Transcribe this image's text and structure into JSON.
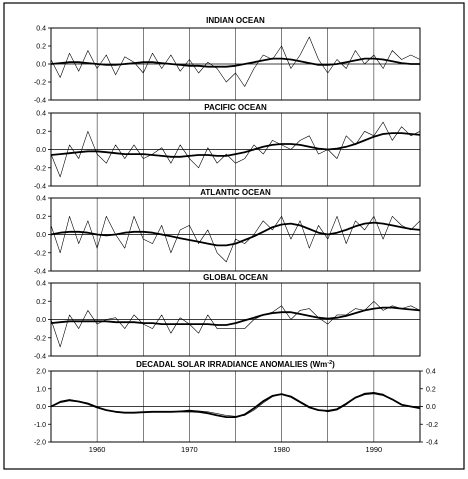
{
  "chart_data": [
    {
      "type": "line",
      "title": "INDIAN OCEAN",
      "xlim": [
        1955,
        1995
      ],
      "ylim": [
        -0.4,
        0.4
      ],
      "yticks": [
        0.4,
        0.2,
        0.0,
        -0.2,
        -0.4
      ],
      "ytick_labels": [
        "0.4",
        "0.2",
        "0.0",
        "-0.2",
        "-0.4"
      ],
      "grid": true,
      "series": [
        {
          "style": "thin",
          "x": [
            1955,
            1956,
            1957,
            1958,
            1959,
            1960,
            1961,
            1962,
            1963,
            1964,
            1965,
            1966,
            1967,
            1968,
            1969,
            1970,
            1971,
            1972,
            1973,
            1974,
            1975,
            1976,
            1977,
            1978,
            1979,
            1980,
            1981,
            1982,
            1983,
            1984,
            1985,
            1986,
            1987,
            1988,
            1989,
            1990,
            1991,
            1992,
            1993,
            1994,
            1995
          ],
          "values": [
            0.05,
            -0.15,
            0.12,
            -0.08,
            0.15,
            -0.05,
            0.1,
            -0.12,
            0.08,
            0.02,
            -0.1,
            0.12,
            -0.05,
            0.1,
            -0.08,
            0.05,
            -0.1,
            0.02,
            -0.05,
            -0.2,
            -0.1,
            -0.25,
            -0.05,
            0.1,
            0.05,
            0.2,
            -0.05,
            0.1,
            0.3,
            0.05,
            -0.1,
            0.05,
            -0.05,
            0.15,
            0.0,
            0.1,
            -0.05,
            0.15,
            0.05,
            0.1,
            0.05
          ]
        },
        {
          "style": "smooth",
          "x": [
            1955,
            1956,
            1957,
            1958,
            1959,
            1960,
            1961,
            1962,
            1963,
            1964,
            1965,
            1966,
            1967,
            1968,
            1969,
            1970,
            1971,
            1972,
            1973,
            1974,
            1975,
            1976,
            1977,
            1978,
            1979,
            1980,
            1981,
            1982,
            1983,
            1984,
            1985,
            1986,
            1987,
            1988,
            1989,
            1990,
            1991,
            1992,
            1993,
            1994,
            1995
          ],
          "values": [
            0.0,
            0.01,
            0.02,
            0.02,
            0.01,
            0.0,
            -0.01,
            -0.01,
            0.0,
            0.01,
            0.02,
            0.02,
            0.01,
            0.0,
            -0.01,
            -0.02,
            -0.02,
            -0.03,
            -0.03,
            -0.03,
            -0.02,
            0.0,
            0.02,
            0.04,
            0.06,
            0.06,
            0.05,
            0.03,
            0.01,
            -0.01,
            -0.01,
            0.0,
            0.02,
            0.04,
            0.06,
            0.06,
            0.05,
            0.03,
            0.01,
            0.0,
            0.0
          ]
        }
      ]
    },
    {
      "type": "line",
      "title": "PACIFIC OCEAN",
      "xlim": [
        1955,
        1995
      ],
      "ylim": [
        -0.4,
        0.4
      ],
      "yticks": [
        0.4,
        0.2,
        0.0,
        -0.2,
        -0.4
      ],
      "ytick_labels": [
        "0.4",
        "0.2",
        "0.0",
        "-0.2",
        "-0.4"
      ],
      "grid": true,
      "series": [
        {
          "style": "thin",
          "x": [
            1955,
            1956,
            1957,
            1958,
            1959,
            1960,
            1961,
            1962,
            1963,
            1964,
            1965,
            1966,
            1967,
            1968,
            1969,
            1970,
            1971,
            1972,
            1973,
            1974,
            1975,
            1976,
            1977,
            1978,
            1979,
            1980,
            1981,
            1982,
            1983,
            1984,
            1985,
            1986,
            1987,
            1988,
            1989,
            1990,
            1991,
            1992,
            1993,
            1994,
            1995
          ],
          "values": [
            -0.05,
            -0.3,
            0.05,
            -0.1,
            0.2,
            -0.05,
            -0.15,
            0.05,
            -0.1,
            0.05,
            -0.1,
            -0.05,
            0.02,
            -0.15,
            0.05,
            -0.1,
            -0.2,
            0.02,
            -0.15,
            -0.05,
            -0.15,
            -0.1,
            0.05,
            -0.05,
            0.1,
            0.05,
            0.0,
            0.1,
            0.15,
            -0.05,
            0.0,
            -0.1,
            0.15,
            0.05,
            0.2,
            0.15,
            0.3,
            0.1,
            0.25,
            0.15,
            0.2
          ]
        },
        {
          "style": "smooth",
          "x": [
            1955,
            1956,
            1957,
            1958,
            1959,
            1960,
            1961,
            1962,
            1963,
            1964,
            1965,
            1966,
            1967,
            1968,
            1969,
            1970,
            1971,
            1972,
            1973,
            1974,
            1975,
            1976,
            1977,
            1978,
            1979,
            1980,
            1981,
            1982,
            1983,
            1984,
            1985,
            1986,
            1987,
            1988,
            1989,
            1990,
            1991,
            1992,
            1993,
            1994,
            1995
          ],
          "values": [
            -0.06,
            -0.05,
            -0.04,
            -0.03,
            -0.02,
            -0.02,
            -0.03,
            -0.04,
            -0.05,
            -0.05,
            -0.05,
            -0.06,
            -0.07,
            -0.08,
            -0.08,
            -0.07,
            -0.06,
            -0.06,
            -0.07,
            -0.07,
            -0.05,
            -0.03,
            0.0,
            0.03,
            0.05,
            0.06,
            0.06,
            0.05,
            0.03,
            0.01,
            0.0,
            0.01,
            0.03,
            0.06,
            0.1,
            0.14,
            0.17,
            0.18,
            0.18,
            0.17,
            0.16
          ]
        }
      ]
    },
    {
      "type": "line",
      "title": "ATLANTIC OCEAN",
      "xlim": [
        1955,
        1995
      ],
      "ylim": [
        -0.4,
        0.4
      ],
      "yticks": [
        0.4,
        0.2,
        0.0,
        -0.2,
        -0.4
      ],
      "ytick_labels": [
        "0.4",
        "0.2",
        "0.0",
        "-0.2",
        "-0.4"
      ],
      "grid": true,
      "series": [
        {
          "style": "thin",
          "x": [
            1955,
            1956,
            1957,
            1958,
            1959,
            1960,
            1961,
            1962,
            1963,
            1964,
            1965,
            1966,
            1967,
            1968,
            1969,
            1970,
            1971,
            1972,
            1973,
            1974,
            1975,
            1976,
            1977,
            1978,
            1979,
            1980,
            1981,
            1982,
            1983,
            1984,
            1985,
            1986,
            1987,
            1988,
            1989,
            1990,
            1991,
            1992,
            1993,
            1994,
            1995
          ],
          "values": [
            0.1,
            -0.2,
            0.2,
            -0.1,
            0.15,
            -0.15,
            0.2,
            0.0,
            -0.15,
            0.2,
            -0.05,
            -0.1,
            0.1,
            -0.2,
            0.05,
            0.1,
            -0.1,
            0.05,
            -0.2,
            -0.3,
            -0.05,
            -0.1,
            0.0,
            0.15,
            0.05,
            0.2,
            -0.05,
            0.15,
            -0.15,
            0.1,
            -0.05,
            0.2,
            -0.1,
            0.15,
            0.05,
            0.2,
            -0.05,
            0.2,
            0.1,
            0.05,
            0.15
          ]
        },
        {
          "style": "smooth",
          "x": [
            1955,
            1956,
            1957,
            1958,
            1959,
            1960,
            1961,
            1962,
            1963,
            1964,
            1965,
            1966,
            1967,
            1968,
            1969,
            1970,
            1971,
            1972,
            1973,
            1974,
            1975,
            1976,
            1977,
            1978,
            1979,
            1980,
            1981,
            1982,
            1983,
            1984,
            1985,
            1986,
            1987,
            1988,
            1989,
            1990,
            1991,
            1992,
            1993,
            1994,
            1995
          ],
          "values": [
            0.0,
            0.02,
            0.03,
            0.03,
            0.02,
            0.0,
            -0.01,
            0.0,
            0.02,
            0.03,
            0.03,
            0.02,
            0.0,
            -0.02,
            -0.04,
            -0.06,
            -0.08,
            -0.1,
            -0.12,
            -0.12,
            -0.1,
            -0.06,
            -0.02,
            0.03,
            0.08,
            0.11,
            0.12,
            0.1,
            0.06,
            0.02,
            0.0,
            0.02,
            0.05,
            0.09,
            0.12,
            0.13,
            0.12,
            0.1,
            0.08,
            0.06,
            0.05
          ]
        }
      ]
    },
    {
      "type": "line",
      "title": "GLOBAL OCEAN",
      "xlim": [
        1955,
        1995
      ],
      "ylim": [
        -0.4,
        0.4
      ],
      "yticks": [
        0.4,
        0.2,
        0.0,
        -0.2,
        -0.4
      ],
      "ytick_labels": [
        "0.4",
        "0.2",
        "0.0",
        "-0.2",
        "-0.4"
      ],
      "grid": true,
      "series": [
        {
          "style": "thin",
          "x": [
            1955,
            1956,
            1957,
            1958,
            1959,
            1960,
            1961,
            1962,
            1963,
            1964,
            1965,
            1966,
            1967,
            1968,
            1969,
            1970,
            1971,
            1972,
            1973,
            1974,
            1975,
            1976,
            1977,
            1978,
            1979,
            1980,
            1981,
            1982,
            1983,
            1984,
            1985,
            1986,
            1987,
            1988,
            1989,
            1990,
            1991,
            1992,
            1993,
            1994,
            1995
          ],
          "values": [
            0.0,
            -0.3,
            0.05,
            -0.1,
            0.1,
            -0.05,
            0.0,
            0.02,
            -0.1,
            0.05,
            -0.05,
            -0.1,
            0.05,
            -0.15,
            0.02,
            -0.05,
            -0.15,
            0.05,
            -0.1,
            -0.1,
            -0.1,
            -0.1,
            0.0,
            0.05,
            0.08,
            0.15,
            0.0,
            0.1,
            0.12,
            0.02,
            -0.05,
            0.05,
            0.05,
            0.12,
            0.1,
            0.2,
            0.1,
            0.15,
            0.12,
            0.15,
            0.1
          ]
        },
        {
          "style": "smooth",
          "x": [
            1955,
            1956,
            1957,
            1958,
            1959,
            1960,
            1961,
            1962,
            1963,
            1964,
            1965,
            1966,
            1967,
            1968,
            1969,
            1970,
            1971,
            1972,
            1973,
            1974,
            1975,
            1976,
            1977,
            1978,
            1979,
            1980,
            1981,
            1982,
            1983,
            1984,
            1985,
            1986,
            1987,
            1988,
            1989,
            1990,
            1991,
            1992,
            1993,
            1994,
            1995
          ],
          "values": [
            -0.04,
            -0.03,
            -0.02,
            -0.02,
            -0.02,
            -0.02,
            -0.02,
            -0.03,
            -0.03,
            -0.03,
            -0.04,
            -0.04,
            -0.05,
            -0.05,
            -0.05,
            -0.05,
            -0.05,
            -0.05,
            -0.06,
            -0.06,
            -0.04,
            -0.01,
            0.02,
            0.05,
            0.07,
            0.08,
            0.08,
            0.06,
            0.04,
            0.02,
            0.01,
            0.02,
            0.04,
            0.07,
            0.1,
            0.12,
            0.13,
            0.13,
            0.12,
            0.11,
            0.1
          ]
        }
      ]
    },
    {
      "type": "line",
      "title": "DECADAL SOLAR IRRADIANCE ANOMALIES (Wm",
      "title_superscript": "-2",
      "title_suffix": ")",
      "xlim": [
        1955,
        1995
      ],
      "ylim": [
        -2.0,
        2.0
      ],
      "yticks": [
        2.0,
        1.0,
        0.0,
        -1.0,
        -2.0
      ],
      "ytick_labels": [
        "2.0",
        "1.0",
        "0.0",
        "-1.0",
        "-2.0"
      ],
      "yticks_right": [
        0.4,
        0.2,
        0.0,
        -0.2,
        -0.4
      ],
      "ytick_labels_right": [
        "0.4",
        "0.2",
        "0.0",
        "-0.2",
        "-0.4"
      ],
      "xticks": [
        1960,
        1970,
        1980,
        1990
      ],
      "xtick_labels": [
        "1960",
        "1970",
        "1980",
        "1990"
      ],
      "grid": true,
      "series": [
        {
          "style": "thin",
          "x": [
            1955,
            1956,
            1957,
            1958,
            1959,
            1960,
            1961,
            1962,
            1963,
            1964,
            1965,
            1966,
            1967,
            1968,
            1969,
            1970,
            1971,
            1972,
            1973,
            1974,
            1975,
            1976,
            1977,
            1978,
            1979,
            1980,
            1981,
            1982,
            1983,
            1984,
            1985,
            1986,
            1987,
            1988,
            1989,
            1990,
            1991,
            1992,
            1993,
            1994,
            1995
          ],
          "values": [
            0.0,
            0.3,
            0.4,
            0.3,
            0.2,
            0.0,
            -0.2,
            -0.3,
            -0.35,
            -0.35,
            -0.3,
            -0.3,
            -0.3,
            -0.3,
            -0.25,
            -0.2,
            -0.25,
            -0.3,
            -0.4,
            -0.5,
            -0.55,
            -0.5,
            -0.2,
            0.2,
            0.55,
            0.7,
            0.6,
            0.3,
            0.0,
            -0.2,
            -0.3,
            -0.2,
            0.1,
            0.5,
            0.75,
            0.8,
            0.7,
            0.4,
            0.1,
            0.0,
            0.0
          ]
        },
        {
          "style": "smooth",
          "x": [
            1955,
            1956,
            1957,
            1958,
            1959,
            1960,
            1961,
            1962,
            1963,
            1964,
            1965,
            1966,
            1967,
            1968,
            1969,
            1970,
            1971,
            1972,
            1973,
            1974,
            1975,
            1976,
            1977,
            1978,
            1979,
            1980,
            1981,
            1982,
            1983,
            1984,
            1985,
            1986,
            1987,
            1988,
            1989,
            1990,
            1991,
            1992,
            1993,
            1994,
            1995
          ],
          "values": [
            0.0,
            0.25,
            0.35,
            0.28,
            0.15,
            -0.05,
            -0.2,
            -0.3,
            -0.35,
            -0.35,
            -0.32,
            -0.3,
            -0.3,
            -0.3,
            -0.28,
            -0.27,
            -0.3,
            -0.38,
            -0.5,
            -0.6,
            -0.6,
            -0.45,
            -0.1,
            0.3,
            0.6,
            0.7,
            0.55,
            0.25,
            -0.05,
            -0.2,
            -0.25,
            -0.15,
            0.15,
            0.5,
            0.7,
            0.75,
            0.65,
            0.4,
            0.1,
            0.0,
            -0.1
          ]
        }
      ]
    }
  ]
}
